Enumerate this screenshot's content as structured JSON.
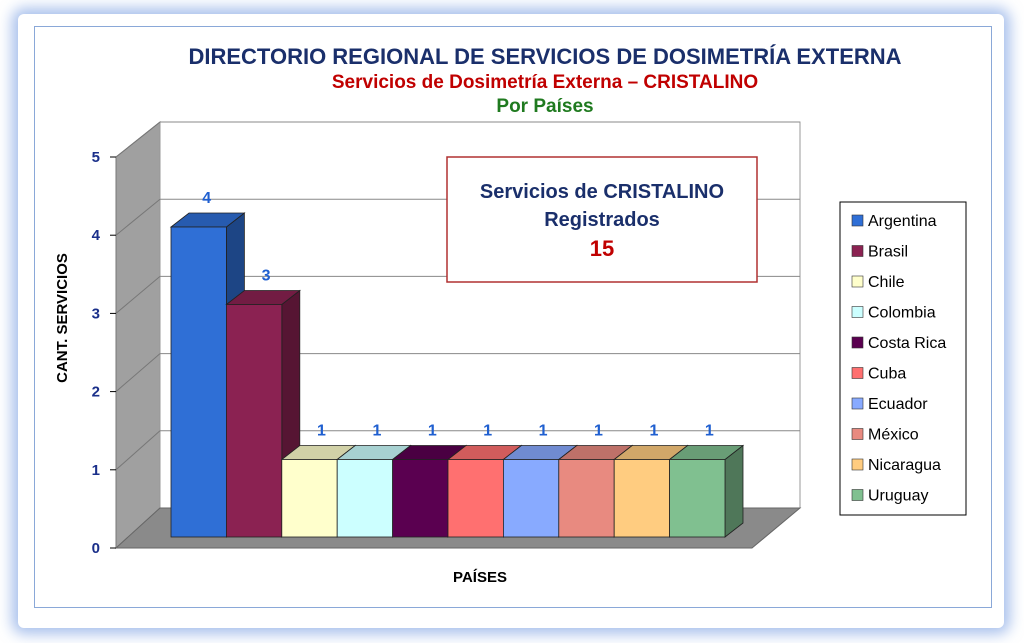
{
  "chart_data": {
    "type": "bar",
    "title": "DIRECTORIO REGIONAL DE SERVICIOS DE DOSIMETRÍA EXTERNA",
    "subtitle": "Servicios de Dosimetría Externa – CRISTALINO",
    "subtitle2": "Por Países",
    "xlabel": "PAÍSES",
    "ylabel": "CANT. SERVICIOS",
    "ylim": [
      0,
      5
    ],
    "yticks": [
      "0",
      "1",
      "2",
      "3",
      "4",
      "5"
    ],
    "grid": true,
    "legend_position": "right",
    "categories": [
      "Argentina",
      "Brasil",
      "Chile",
      "Colombia",
      "Costa Rica",
      "Cuba",
      "Ecuador",
      "México",
      "Nicaragua",
      "Uruguay"
    ],
    "values": [
      4,
      3,
      1,
      1,
      1,
      1,
      1,
      1,
      1,
      1
    ],
    "colors": [
      "#2f6fd6",
      "#8b2252",
      "#ffffcc",
      "#ccffff",
      "#5a0050",
      "#ff7070",
      "#88aaff",
      "#e88a80",
      "#ffcc80",
      "#80c090"
    ],
    "annotation": {
      "line1": "Servicios de CRISTALINO",
      "line2": "Registrados",
      "value": "15"
    }
  }
}
